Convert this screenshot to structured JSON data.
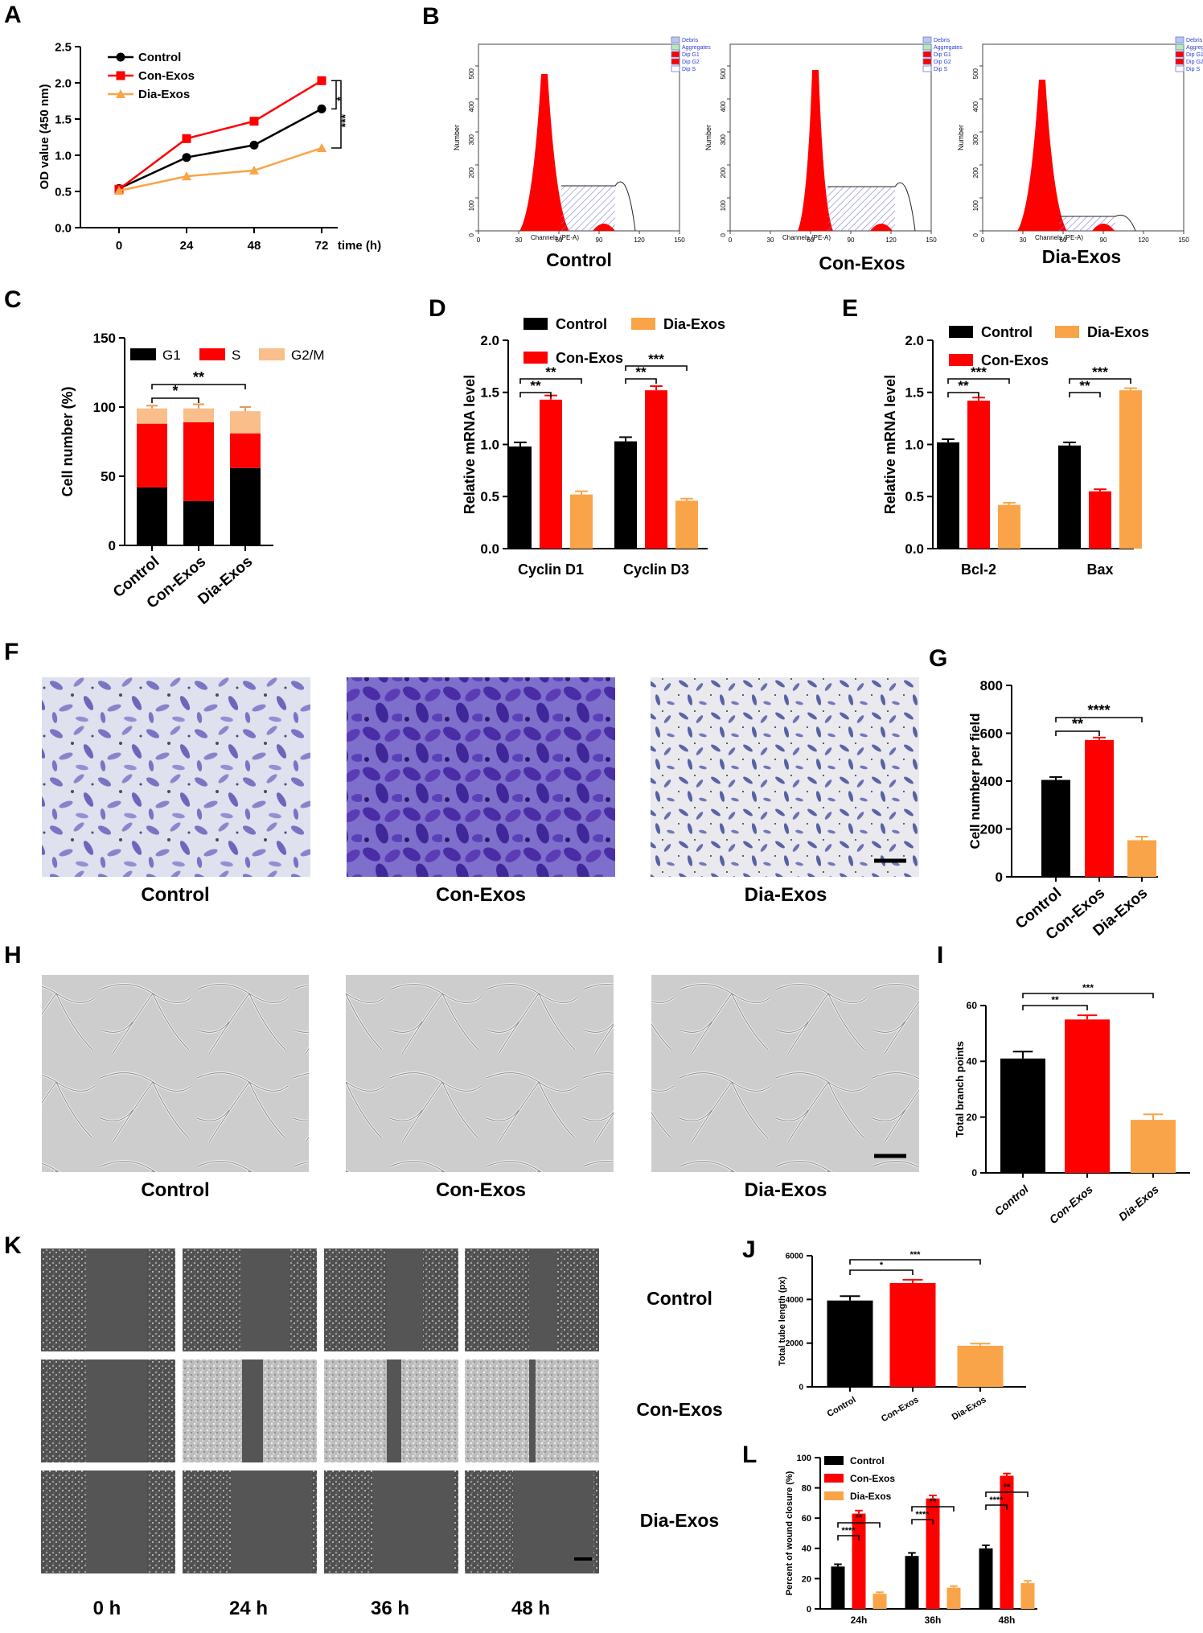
{
  "panels": {
    "A": "A",
    "B": "B",
    "C": "C",
    "D": "D",
    "E": "E",
    "F": "F",
    "G": "G",
    "H": "H",
    "I": "I",
    "J": "J",
    "K": "K",
    "L": "L"
  },
  "colors": {
    "control": "#000000",
    "con": "#ff0000",
    "dia": "#f9a448",
    "g2m": "#f9be8a"
  },
  "flow": {
    "legend": [
      "Debris",
      "Aggregates",
      "Dip G1",
      "Dip G2",
      "Dip S"
    ],
    "ylabel": "Number",
    "xlabel": "Channels (PE-A)",
    "xticks": [
      "0",
      "30",
      "60",
      "90",
      "120",
      "150"
    ],
    "yticks": [
      "0",
      "100",
      "200",
      "300",
      "400",
      "500"
    ],
    "groups": [
      "Control",
      "Con-Exos",
      "Dia-Exos"
    ]
  },
  "images": {
    "F": [
      "Control",
      "Con-Exos",
      "Dia-Exos"
    ],
    "H": [
      "Control",
      "Con-Exos",
      "Dia-Exos"
    ],
    "K_rows": [
      "Control",
      "Con-Exos",
      "Dia-Exos"
    ],
    "K_cols": [
      "0 h",
      "24 h",
      "36 h",
      "48 h"
    ]
  },
  "chart_data": [
    {
      "panel": "A",
      "type": "line",
      "x": [
        0,
        24,
        48,
        72
      ],
      "xticks": [
        "0",
        "24",
        "48",
        "72"
      ],
      "xlabel": "time (h)",
      "ylabel": "OD value (450 nm)",
      "ylim": [
        0,
        2.5
      ],
      "yticks": [
        "0.0",
        "0.5",
        "1.0",
        "1.5",
        "2.0",
        "2.5"
      ],
      "series": [
        {
          "name": "Control",
          "values": [
            0.54,
            0.97,
            1.14,
            1.64
          ]
        },
        {
          "name": "Con-Exos",
          "values": [
            0.53,
            1.23,
            1.47,
            2.03
          ]
        },
        {
          "name": "Dia-Exos",
          "values": [
            0.51,
            0.71,
            0.79,
            1.1
          ]
        }
      ],
      "significance": [
        "*",
        "***"
      ]
    },
    {
      "panel": "C",
      "type": "bar",
      "stacked": true,
      "categories": [
        "Control",
        "Con-Exos",
        "Dia-Exos"
      ],
      "ylabel": "Cell number (%)",
      "ylim": [
        0,
        150
      ],
      "yticks": [
        "0",
        "50",
        "100",
        "150"
      ],
      "series": [
        {
          "name": "G1",
          "values": [
            42,
            32,
            56
          ],
          "errors": [
            2,
            3,
            3
          ]
        },
        {
          "name": "S",
          "values": [
            46,
            57,
            25
          ],
          "errors": [
            2,
            4,
            3
          ]
        },
        {
          "name": "G2/M",
          "values": [
            11,
            10,
            16
          ],
          "errors": [
            2,
            3,
            3
          ]
        }
      ],
      "significance": [
        "*",
        "**"
      ]
    },
    {
      "panel": "D",
      "type": "bar",
      "categories": [
        "Cyclin D1",
        "Cyclin D3"
      ],
      "ylabel": "Relative mRNA level",
      "ylim": [
        0,
        2.0
      ],
      "yticks": [
        "0.0",
        "0.5",
        "1.0",
        "1.5",
        "2.0"
      ],
      "series": [
        {
          "name": "Control",
          "values": [
            0.98,
            1.03
          ],
          "errors": [
            0.04,
            0.04
          ]
        },
        {
          "name": "Con-Exos",
          "values": [
            1.43,
            1.52
          ],
          "errors": [
            0.04,
            0.04
          ]
        },
        {
          "name": "Dia-Exos",
          "values": [
            0.52,
            0.46
          ],
          "errors": [
            0.03,
            0.02
          ]
        }
      ],
      "significance": [
        "**",
        "**",
        "**",
        "***"
      ]
    },
    {
      "panel": "E",
      "type": "bar",
      "categories": [
        "Bcl-2",
        "Bax"
      ],
      "ylabel": "Relative mRNA level",
      "ylim": [
        0,
        2.0
      ],
      "yticks": [
        "0.0",
        "0.5",
        "1.0",
        "1.5",
        "2.0"
      ],
      "series": [
        {
          "name": "Control",
          "values": [
            1.02,
            0.99
          ],
          "errors": [
            0.03,
            0.03
          ]
        },
        {
          "name": "Con-Exos",
          "values": [
            1.42,
            0.55
          ],
          "errors": [
            0.03,
            0.02
          ]
        },
        {
          "name": "Dia-Exos",
          "values": [
            0.42,
            1.52
          ],
          "errors": [
            0.02,
            0.02
          ]
        }
      ],
      "significance": [
        "**",
        "***",
        "**",
        "***"
      ]
    },
    {
      "panel": "G",
      "type": "bar",
      "categories": [
        "Control",
        "Con-Exos",
        "Dia-Exos"
      ],
      "ylabel": "Cell number per field",
      "ylim": [
        0,
        800
      ],
      "yticks": [
        "0",
        "200",
        "400",
        "600",
        "800"
      ],
      "values": [
        405,
        572,
        153
      ],
      "errors": [
        12,
        10,
        15
      ],
      "significance": [
        "**",
        "****"
      ]
    },
    {
      "panel": "I",
      "type": "bar",
      "categories": [
        "Control",
        "Con-Exos",
        "Dia-Exos"
      ],
      "ylabel": "Total branch points",
      "ylim": [
        0,
        60
      ],
      "yticks": [
        "0",
        "20",
        "40",
        "60"
      ],
      "values": [
        41,
        55,
        19
      ],
      "errors": [
        2.5,
        1.5,
        2
      ],
      "significance": [
        "**",
        "***"
      ]
    },
    {
      "panel": "J",
      "type": "bar",
      "categories": [
        "Control",
        "Con-Exos",
        "Dia-Exos"
      ],
      "ylabel": "Total tube length (px)",
      "ylim": [
        0,
        6000
      ],
      "yticks": [
        "0",
        "2000",
        "4000",
        "6000"
      ],
      "values": [
        3950,
        4750,
        1880
      ],
      "errors": [
        200,
        150,
        100
      ],
      "significance": [
        "*",
        "***"
      ]
    },
    {
      "panel": "L",
      "type": "bar",
      "categories": [
        "24h",
        "36h",
        "48h"
      ],
      "ylabel": "Percent of wound closure (%)",
      "ylim": [
        0,
        100
      ],
      "yticks": [
        "0",
        "20",
        "40",
        "60",
        "80",
        "100"
      ],
      "series": [
        {
          "name": "Control",
          "values": [
            28,
            35,
            40
          ],
          "errors": [
            1.5,
            2,
            2
          ]
        },
        {
          "name": "Con-Exos",
          "values": [
            63,
            73,
            88
          ],
          "errors": [
            2,
            2,
            1.5
          ]
        },
        {
          "name": "Dia-Exos",
          "values": [
            10,
            14,
            17
          ],
          "errors": [
            1,
            1,
            1.5
          ]
        }
      ],
      "significance": [
        "****",
        "**",
        "****",
        "**",
        "****",
        "**"
      ]
    }
  ]
}
